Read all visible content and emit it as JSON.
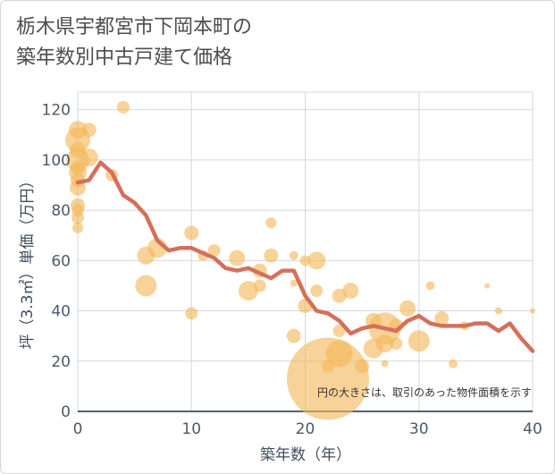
{
  "title_lines": [
    "栃木県宇都宮市下岡本町の",
    "築年数別中古戸建て価格"
  ],
  "chart_data": {
    "type": "scatter",
    "xlabel": "築年数（年）",
    "ylabel": "坪（3.3㎡）単価（万円）",
    "xlim": [
      0,
      40
    ],
    "ylim": [
      0,
      127
    ],
    "xticks": [
      0,
      10,
      20,
      30,
      40
    ],
    "yticks": [
      0,
      20,
      40,
      60,
      80,
      100,
      120
    ],
    "grid": true,
    "note": "円の大きさは、取引のあった物件面積を示す",
    "colors": {
      "bubble": "#f3b85b",
      "line": "#d4705a",
      "grid": "#cfd8e0"
    },
    "trend_line": {
      "x": [
        0,
        1,
        2,
        3,
        4,
        5,
        6,
        7,
        8,
        9,
        10,
        11,
        12,
        13,
        14,
        15,
        16,
        17,
        18,
        19,
        20,
        21,
        22,
        23,
        24,
        25,
        26,
        27,
        28,
        29,
        30,
        31,
        32,
        33,
        34,
        35,
        36,
        37,
        38,
        39,
        40
      ],
      "y": [
        91,
        92,
        99,
        95,
        86,
        83,
        78,
        68,
        64,
        65,
        65,
        63,
        61,
        57,
        56,
        57,
        55,
        53,
        56,
        56,
        46,
        40,
        39,
        36,
        31,
        33,
        34,
        33,
        32,
        36,
        38,
        35,
        34,
        34,
        34,
        35,
        35,
        32,
        35,
        29,
        24
      ]
    },
    "points": [
      {
        "x": 0,
        "y": 112,
        "s": 10
      },
      {
        "x": 0,
        "y": 108,
        "s": 14
      },
      {
        "x": 0,
        "y": 104,
        "s": 9
      },
      {
        "x": 0,
        "y": 100,
        "s": 13
      },
      {
        "x": 0,
        "y": 97,
        "s": 8
      },
      {
        "x": 0,
        "y": 95,
        "s": 10
      },
      {
        "x": 0,
        "y": 92,
        "s": 8
      },
      {
        "x": 0,
        "y": 89,
        "s": 9
      },
      {
        "x": 0,
        "y": 82,
        "s": 8
      },
      {
        "x": 0,
        "y": 80,
        "s": 7
      },
      {
        "x": 0,
        "y": 77,
        "s": 7
      },
      {
        "x": 0,
        "y": 73,
        "s": 6
      },
      {
        "x": 1,
        "y": 112,
        "s": 8
      },
      {
        "x": 1,
        "y": 101,
        "s": 10
      },
      {
        "x": 3,
        "y": 94,
        "s": 7
      },
      {
        "x": 4,
        "y": 121,
        "s": 7
      },
      {
        "x": 6,
        "y": 62,
        "s": 10
      },
      {
        "x": 6,
        "y": 50,
        "s": 12
      },
      {
        "x": 7,
        "y": 65,
        "s": 11
      },
      {
        "x": 10,
        "y": 71,
        "s": 8
      },
      {
        "x": 10,
        "y": 39,
        "s": 7
      },
      {
        "x": 11,
        "y": 62,
        "s": 6
      },
      {
        "x": 12,
        "y": 64,
        "s": 7
      },
      {
        "x": 14,
        "y": 61,
        "s": 9
      },
      {
        "x": 15,
        "y": 48,
        "s": 11
      },
      {
        "x": 16,
        "y": 56,
        "s": 8
      },
      {
        "x": 16,
        "y": 50,
        "s": 7
      },
      {
        "x": 17,
        "y": 75,
        "s": 6
      },
      {
        "x": 17,
        "y": 62,
        "s": 8
      },
      {
        "x": 19,
        "y": 62,
        "s": 5
      },
      {
        "x": 19,
        "y": 51,
        "s": 4
      },
      {
        "x": 19,
        "y": 30,
        "s": 8
      },
      {
        "x": 20,
        "y": 60,
        "s": 6
      },
      {
        "x": 20,
        "y": 42,
        "s": 8
      },
      {
        "x": 21,
        "y": 60,
        "s": 10
      },
      {
        "x": 21,
        "y": 48,
        "s": 7
      },
      {
        "x": 22,
        "y": 13,
        "s": 46
      },
      {
        "x": 22,
        "y": 18,
        "s": 7
      },
      {
        "x": 23,
        "y": 32,
        "s": 7
      },
      {
        "x": 23,
        "y": 46,
        "s": 8
      },
      {
        "x": 23,
        "y": 23,
        "s": 15
      },
      {
        "x": 24,
        "y": 48,
        "s": 9
      },
      {
        "x": 25,
        "y": 18,
        "s": 8
      },
      {
        "x": 26,
        "y": 25,
        "s": 11
      },
      {
        "x": 26,
        "y": 36,
        "s": 9
      },
      {
        "x": 27,
        "y": 33,
        "s": 18
      },
      {
        "x": 27,
        "y": 19,
        "s": 4
      },
      {
        "x": 27,
        "y": 27,
        "s": 10
      },
      {
        "x": 28,
        "y": 34,
        "s": 8
      },
      {
        "x": 28,
        "y": 27,
        "s": 7
      },
      {
        "x": 29,
        "y": 41,
        "s": 9
      },
      {
        "x": 30,
        "y": 28,
        "s": 12
      },
      {
        "x": 31,
        "y": 50,
        "s": 5
      },
      {
        "x": 32,
        "y": 37,
        "s": 8
      },
      {
        "x": 33,
        "y": 19,
        "s": 5
      },
      {
        "x": 34,
        "y": 34,
        "s": 5
      },
      {
        "x": 36,
        "y": 50,
        "s": 3
      },
      {
        "x": 37,
        "y": 40,
        "s": 4
      },
      {
        "x": 40,
        "y": 40,
        "s": 3
      }
    ]
  }
}
